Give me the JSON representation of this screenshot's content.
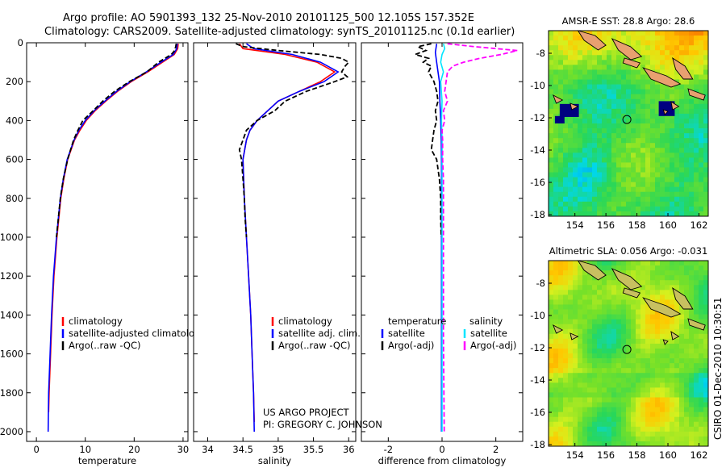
{
  "header": {
    "line1": "Argo profile: AO 5901393_132 25-Nov-2010 20101125_500 12.105S 157.352E",
    "line2": "Climatology: CARS2009. Satellite-adjusted climatology: synTS_20101125.nc (0.1d earlier)"
  },
  "footer": {
    "project_line1": "US ARGO PROJECT",
    "project_line2": "PI: GREGORY C. JOHNSON",
    "csiro": "CSIRO 01-Dec-2010 10:30:51"
  },
  "colors": {
    "climatology": "#ff0000",
    "satellite": "#0000ff",
    "argo": "#000000",
    "sal_satellite": "#00e5ff",
    "sal_argo": "#ff00ff"
  },
  "chart_data": [
    {
      "type": "line",
      "name": "temperature",
      "xlabel": "temperature",
      "ylabel": "",
      "xlim": [
        -2,
        31
      ],
      "ylim": [
        2050,
        0
      ],
      "xticks": [
        0,
        10,
        20,
        30
      ],
      "yticks": [
        0,
        200,
        400,
        600,
        800,
        1000,
        1200,
        1400,
        1600,
        1800,
        2000
      ],
      "legend": [
        "climatology",
        "satellite-adjusted climatology",
        "Argo(..raw -QC)"
      ],
      "legend_position": "lower-center",
      "series": [
        {
          "name": "climatology",
          "style": "solid",
          "color": "#ff0000",
          "depth": [
            5,
            30,
            60,
            100,
            150,
            200,
            250,
            300,
            350,
            400,
            450,
            500,
            600,
            700,
            800,
            900,
            1000,
            1200,
            1400,
            1600,
            1800,
            1900
          ],
          "values": [
            29.0,
            28.9,
            28.2,
            25.8,
            22.8,
            19.4,
            16.6,
            14.2,
            12.0,
            10.2,
            8.9,
            7.8,
            6.4,
            5.6,
            5.0,
            4.6,
            4.2,
            3.6,
            3.2,
            2.9,
            2.6,
            2.5
          ]
        },
        {
          "name": "satellite-adjusted climatology",
          "style": "solid",
          "color": "#0000ff",
          "depth": [
            5,
            30,
            60,
            100,
            150,
            200,
            250,
            300,
            350,
            400,
            450,
            500,
            600,
            700,
            800,
            900,
            1000,
            1200,
            1400,
            1600,
            1800,
            2000
          ],
          "values": [
            28.8,
            28.7,
            28.0,
            25.5,
            22.5,
            19.2,
            16.4,
            14.0,
            11.8,
            10.0,
            8.7,
            7.7,
            6.3,
            5.5,
            4.9,
            4.5,
            4.1,
            3.5,
            3.1,
            2.8,
            2.5,
            2.4
          ]
        },
        {
          "name": "Argo(..raw -QC)",
          "style": "dashed",
          "color": "#000000",
          "depth": [
            5,
            20,
            40,
            60,
            100,
            150,
            200,
            250,
            300,
            350,
            400,
            450,
            500,
            550,
            600,
            700,
            800,
            900,
            1000
          ],
          "values": [
            28.6,
            28.5,
            28.3,
            27.6,
            25.0,
            22.6,
            19.0,
            16.0,
            13.6,
            11.6,
            9.5,
            8.5,
            7.6,
            7.0,
            6.4,
            5.5,
            4.9,
            4.5,
            4.1
          ]
        }
      ]
    },
    {
      "type": "line",
      "name": "salinity",
      "xlabel": "salinity",
      "ylabel": "",
      "xlim": [
        33.8,
        36.1
      ],
      "ylim": [
        2050,
        0
      ],
      "xticks": [
        34,
        34.5,
        35,
        35.5,
        36
      ],
      "yticks": [
        0,
        200,
        400,
        600,
        800,
        1000,
        1200,
        1400,
        1600,
        1800,
        2000
      ],
      "legend": [
        "climatology",
        "satellite adj. clim.",
        "Argo(..raw -QC)"
      ],
      "legend_position": "lower-center",
      "series": [
        {
          "name": "climatology",
          "style": "solid",
          "color": "#ff0000",
          "depth": [
            5,
            30,
            60,
            100,
            150,
            200,
            250,
            300,
            350,
            400,
            450,
            500,
            600,
            800,
            1000,
            1200,
            1400,
            1600,
            1800,
            1950
          ],
          "values": [
            34.45,
            34.5,
            35.1,
            35.55,
            35.8,
            35.6,
            35.3,
            35.0,
            34.85,
            34.7,
            34.6,
            34.55,
            34.5,
            34.52,
            34.55,
            34.58,
            34.61,
            34.63,
            34.65,
            34.66
          ]
        },
        {
          "name": "satellite adj. clim.",
          "style": "solid",
          "color": "#0000ff",
          "depth": [
            5,
            30,
            60,
            100,
            150,
            200,
            250,
            300,
            350,
            400,
            450,
            500,
            600,
            800,
            1000,
            1200,
            1400,
            1600,
            1800,
            2000
          ],
          "values": [
            34.55,
            34.65,
            35.2,
            35.6,
            35.85,
            35.65,
            35.3,
            35.0,
            34.85,
            34.7,
            34.6,
            34.55,
            34.5,
            34.52,
            34.55,
            34.58,
            34.61,
            34.63,
            34.65,
            34.66
          ]
        },
        {
          "name": "Argo(..raw -QC)",
          "style": "dashed",
          "color": "#000000",
          "depth": [
            5,
            20,
            40,
            60,
            80,
            100,
            120,
            150,
            175,
            200,
            250,
            300,
            350,
            400,
            450,
            500,
            550,
            600,
            700,
            800,
            900,
            1000
          ],
          "values": [
            34.4,
            34.5,
            35.0,
            35.6,
            35.9,
            36.0,
            35.95,
            35.9,
            35.98,
            35.8,
            35.4,
            35.1,
            34.95,
            34.7,
            34.55,
            34.5,
            34.45,
            34.48,
            34.5,
            34.52,
            34.53,
            34.55
          ]
        }
      ]
    },
    {
      "type": "line",
      "name": "difference",
      "xlabel": "difference from climatology",
      "ylabel": "",
      "xlim": [
        -3,
        3
      ],
      "ylim": [
        2050,
        0
      ],
      "xticks": [
        -2,
        0,
        2
      ],
      "yticks": [
        0,
        200,
        400,
        600,
        800,
        1000,
        1200,
        1400,
        1600,
        1800,
        2000
      ],
      "legend_headers": [
        "temperature",
        "salinity"
      ],
      "legend": [
        "satellite",
        "Argo(-adj)",
        "satellite",
        "Argo(-adj)"
      ],
      "legend_position": "lower-center",
      "series": [
        {
          "name": "temperature satellite",
          "style": "solid",
          "color": "#0000ff",
          "depth": [
            5,
            50,
            100,
            150,
            200,
            300,
            400,
            500,
            600,
            800,
            1000,
            1500,
            2000
          ],
          "values": [
            -0.2,
            -0.25,
            -0.2,
            -0.15,
            -0.1,
            -0.08,
            -0.05,
            -0.03,
            -0.02,
            -0.02,
            -0.02,
            -0.02,
            -0.02
          ]
        },
        {
          "name": "temperature Argo(-adj)",
          "style": "dashed",
          "color": "#000000",
          "depth": [
            5,
            20,
            40,
            60,
            80,
            100,
            120,
            150,
            200,
            250,
            300,
            350,
            400,
            450,
            500,
            550,
            600,
            700,
            800,
            900,
            1000
          ],
          "values": [
            -0.4,
            -0.9,
            -0.6,
            -1.0,
            -0.5,
            -0.7,
            -0.4,
            -0.5,
            -0.3,
            -0.2,
            -0.15,
            -0.25,
            -0.2,
            -0.3,
            -0.35,
            -0.4,
            -0.2,
            -0.1,
            -0.05,
            -0.05,
            -0.03
          ]
        },
        {
          "name": "salinity satellite",
          "style": "solid",
          "color": "#00e5ff",
          "depth": [
            5,
            30,
            60,
            100,
            150,
            200,
            300,
            400,
            500,
            700,
            1000,
            1500,
            2000
          ],
          "values": [
            0.05,
            0.1,
            0.0,
            -0.05,
            0.05,
            -0.05,
            0.0,
            -0.02,
            0.0,
            0.0,
            0.0,
            0.0,
            0.0
          ]
        },
        {
          "name": "salinity Argo(-adj)",
          "style": "dashed",
          "color": "#ff00ff",
          "depth": [
            5,
            20,
            40,
            60,
            80,
            100,
            120,
            150,
            200,
            250,
            300,
            350,
            400,
            450,
            500,
            600,
            700,
            800,
            1000,
            1500,
            2000
          ],
          "values": [
            0.2,
            1.2,
            2.8,
            2.2,
            1.4,
            0.8,
            0.4,
            0.2,
            0.15,
            0.1,
            0.2,
            0.05,
            0.1,
            0.0,
            0.02,
            0.02,
            0.05,
            0.05,
            0.05,
            0.05,
            0.08
          ]
        }
      ]
    },
    {
      "type": "heatmap",
      "name": "sst_map",
      "title": "AMSR-E SST: 28.8 Argo: 28.6",
      "xlim": [
        152.3,
        162.6
      ],
      "ylim": [
        -18.1,
        -6.6
      ],
      "xticks": [
        154,
        156,
        158,
        160,
        162
      ],
      "yticks": [
        -8,
        -10,
        -12,
        -14,
        -16,
        -18
      ],
      "marker": {
        "lon": 157.352,
        "lat": -12.105
      }
    },
    {
      "type": "heatmap",
      "name": "sla_map",
      "title": "Altimetric SLA: 0.056 Argo: -0.031",
      "xlim": [
        152.3,
        162.6
      ],
      "ylim": [
        -18.1,
        -6.6
      ],
      "xticks": [
        154,
        156,
        158,
        160,
        162
      ],
      "yticks": [
        -8,
        -10,
        -12,
        -14,
        -16,
        -18
      ],
      "marker": {
        "lon": 157.352,
        "lat": -12.105
      }
    }
  ]
}
